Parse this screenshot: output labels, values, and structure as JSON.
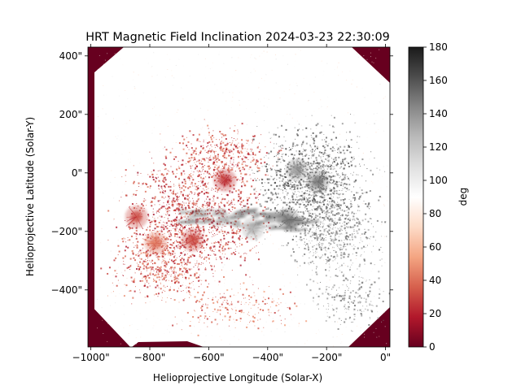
{
  "chart_data": {
    "type": "heatmap",
    "title": "HRT Magnetic Field Inclination 2024-03-23 22:30:09",
    "xlabel": "Helioprojective Longitude (Solar-X)",
    "ylabel": "Helioprojective Latitude (Solar-Y)",
    "xlim": [
      -1010,
      15
    ],
    "ylim": [
      -595,
      430
    ],
    "x_ticks": [
      {
        "value": -1000,
        "label": "−1000\""
      },
      {
        "value": -800,
        "label": "−800\""
      },
      {
        "value": -600,
        "label": "−600\""
      },
      {
        "value": -400,
        "label": "−400\""
      },
      {
        "value": -200,
        "label": "−200\""
      },
      {
        "value": 0,
        "label": "0\""
      }
    ],
    "y_ticks": [
      {
        "value": 400,
        "label": "400\""
      },
      {
        "value": 200,
        "label": "200\""
      },
      {
        "value": 0,
        "label": "0\""
      },
      {
        "value": -200,
        "label": "−200\""
      },
      {
        "value": -400,
        "label": "−400\""
      }
    ],
    "colorbar": {
      "label": "deg",
      "range": [
        0,
        180
      ],
      "colormap": "RdGy",
      "ticks": [
        {
          "value": 0,
          "label": "0"
        },
        {
          "value": 20,
          "label": "20"
        },
        {
          "value": 40,
          "label": "40"
        },
        {
          "value": 60,
          "label": "60"
        },
        {
          "value": 80,
          "label": "80"
        },
        {
          "value": 100,
          "label": "100"
        },
        {
          "value": 120,
          "label": "120"
        },
        {
          "value": 140,
          "label": "140"
        },
        {
          "value": 160,
          "label": "160"
        },
        {
          "value": 180,
          "label": "180"
        }
      ]
    },
    "features": [
      {
        "kind": "spot",
        "x": -545,
        "y": -25,
        "value": 25
      },
      {
        "kind": "spot",
        "x": -845,
        "y": -150,
        "value": 30
      },
      {
        "kind": "spot",
        "x": -655,
        "y": -230,
        "value": 30
      },
      {
        "kind": "spot",
        "x": -780,
        "y": -240,
        "value": 40
      },
      {
        "kind": "spot",
        "x": -330,
        "y": -160,
        "value": 150
      },
      {
        "kind": "spot",
        "x": -230,
        "y": -30,
        "value": 150
      },
      {
        "kind": "spot",
        "x": -300,
        "y": 10,
        "value": 140
      },
      {
        "kind": "spot",
        "x": -450,
        "y": -190,
        "value": 130
      }
    ],
    "colors": {
      "background": "#ffffff",
      "low": "#67001f",
      "mid": "#ffffff",
      "high": "#1a1a1a"
    }
  }
}
